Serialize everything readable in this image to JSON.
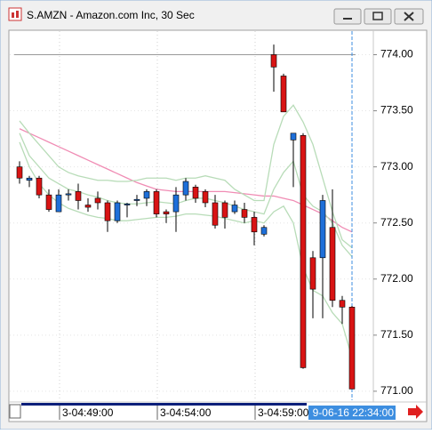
{
  "chart_data": {
    "type": "candlestick",
    "title": "S.AMZN - Amazon.com Inc, 30 Sec",
    "categories": [
      null,
      null,
      null,
      null,
      "3-04:49:00",
      null,
      null,
      null,
      null,
      null,
      null,
      null,
      null,
      null,
      "3-04:54:00",
      null,
      null,
      null,
      null,
      null,
      null,
      null,
      null,
      null,
      "3-04:59:00",
      null,
      null,
      null,
      null,
      null,
      null,
      null,
      null,
      null,
      "9-06-16 22:34:00"
    ],
    "open": [
      773.0,
      772.88,
      772.9,
      772.75,
      772.6,
      772.75,
      772.78,
      772.66,
      772.72,
      772.68,
      772.52,
      772.66,
      772.7,
      772.72,
      772.78,
      772.6,
      772.6,
      772.75,
      772.82,
      772.78,
      772.68,
      772.68,
      772.6,
      772.62,
      772.55,
      772.4,
      774.0,
      773.81,
      773.24,
      773.28,
      772.19,
      772.19,
      772.46,
      771.81,
      771.75
    ],
    "high": [
      773.05,
      772.92,
      772.92,
      772.8,
      772.8,
      772.8,
      772.85,
      772.72,
      772.78,
      772.7,
      772.7,
      772.68,
      772.75,
      772.8,
      772.8,
      772.62,
      772.82,
      772.9,
      772.84,
      772.8,
      772.75,
      772.7,
      772.7,
      772.68,
      772.6,
      772.48,
      774.09,
      773.83,
      773.3,
      773.3,
      772.25,
      772.75,
      772.8,
      771.85,
      771.76
    ],
    "low": [
      772.85,
      772.82,
      772.72,
      772.6,
      772.6,
      772.7,
      772.62,
      772.6,
      772.62,
      772.42,
      772.5,
      772.55,
      772.65,
      772.65,
      772.55,
      772.5,
      772.42,
      772.7,
      772.68,
      772.64,
      772.45,
      772.45,
      772.58,
      772.5,
      772.3,
      772.38,
      773.67,
      773.49,
      772.82,
      771.2,
      771.65,
      771.65,
      771.75,
      771.6,
      771.02
    ],
    "close": [
      772.9,
      772.9,
      772.75,
      772.62,
      772.75,
      772.76,
      772.7,
      772.64,
      772.68,
      772.52,
      772.68,
      772.67,
      772.71,
      772.78,
      772.58,
      772.58,
      772.75,
      772.87,
      772.72,
      772.68,
      772.48,
      772.55,
      772.66,
      772.55,
      772.42,
      772.46,
      773.89,
      773.49,
      773.3,
      771.21,
      771.91,
      772.7,
      771.81,
      771.75,
      771.02
    ],
    "up_color": "#1e6fd9",
    "down_color": "#d81414",
    "overlays": [
      {
        "color": "#f08cb4",
        "values": [
          773.34,
          773.3,
          773.26,
          773.22,
          773.18,
          773.14,
          773.1,
          773.06,
          773.02,
          772.98,
          772.94,
          772.9,
          772.86,
          772.83,
          772.8,
          772.79,
          772.78,
          772.78,
          772.78,
          772.78,
          772.78,
          772.78,
          772.77,
          772.76,
          772.75,
          772.74,
          772.74,
          772.72,
          772.7,
          772.66,
          772.62,
          772.58,
          772.52,
          772.46,
          772.42
        ]
      },
      {
        "color": "#b8dcb8",
        "values": [
          773.41,
          773.3,
          773.2,
          773.1,
          773.0,
          772.95,
          772.92,
          772.9,
          772.88,
          772.88,
          772.87,
          772.87,
          772.88,
          772.9,
          772.9,
          772.9,
          772.88,
          772.9,
          772.9,
          772.92,
          772.9,
          772.88,
          772.8,
          772.75,
          772.7,
          772.7,
          773.2,
          773.45,
          773.55,
          773.4,
          773.2,
          772.9,
          772.6,
          772.35,
          772.28
        ]
      },
      {
        "color": "#b8dcb8",
        "values": [
          773.3,
          773.1,
          773.0,
          772.9,
          772.85,
          772.8,
          772.78,
          772.75,
          772.73,
          772.7,
          772.68,
          772.67,
          772.67,
          772.68,
          772.69,
          772.68,
          772.67,
          772.7,
          772.72,
          772.72,
          772.7,
          772.68,
          772.65,
          772.62,
          772.6,
          772.58,
          772.8,
          772.95,
          773.05,
          772.75,
          772.65,
          772.6,
          772.5,
          772.3,
          772.2
        ]
      },
      {
        "color": "#b8dcb8",
        "values": [
          773.22,
          773.0,
          772.85,
          772.75,
          772.68,
          772.63,
          772.6,
          772.57,
          772.55,
          772.54,
          772.52,
          772.52,
          772.53,
          772.54,
          772.55,
          772.55,
          772.56,
          772.58,
          772.58,
          772.57,
          772.56,
          772.54,
          772.52,
          772.5,
          772.52,
          772.5,
          772.6,
          772.65,
          772.5,
          772.1,
          771.9,
          771.85,
          771.7,
          771.6,
          771.3
        ]
      }
    ],
    "hline": 774,
    "ylim": [
      770.92,
      774.21
    ],
    "yticks": [
      {
        "value": 771,
        "label": "771.00"
      },
      {
        "value": 771.5,
        "label": "771.50"
      },
      {
        "value": 772,
        "label": "772.00"
      },
      {
        "value": 772.5,
        "label": "772.50"
      },
      {
        "value": 773,
        "label": "773.00"
      },
      {
        "value": 773.5,
        "label": "773.50"
      },
      {
        "value": 774,
        "label": "774.00"
      }
    ],
    "grid": true
  }
}
